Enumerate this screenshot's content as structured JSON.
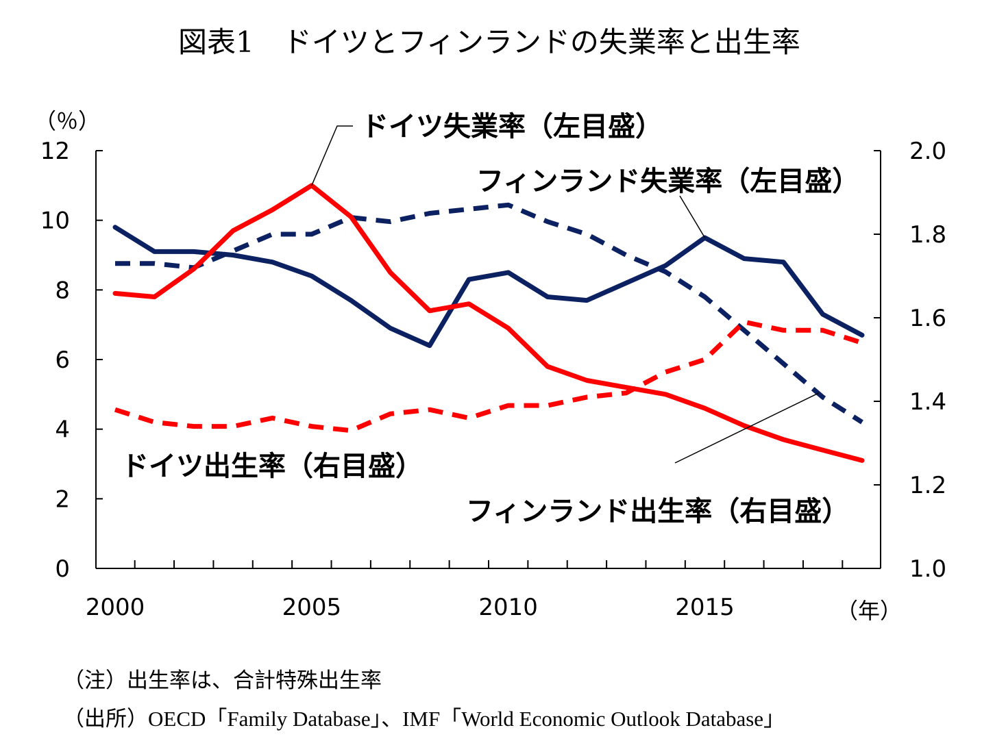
{
  "chart_data": {
    "type": "line",
    "title": "図表1　ドイツとフィンランドの失業率と出生率",
    "left_axis": {
      "unit_label": "（％）",
      "ylim": [
        0,
        12
      ],
      "ticks": [
        0,
        2,
        4,
        6,
        8,
        10,
        12
      ]
    },
    "right_axis": {
      "ylim": [
        1.0,
        2.0
      ],
      "ticks": [
        "1.0",
        "1.2",
        "1.4",
        "1.6",
        "1.8",
        "2.0"
      ]
    },
    "x_axis": {
      "unit_label": "（年）",
      "xlim": [
        2000,
        2019
      ],
      "tick_labels": [
        2000,
        2005,
        2010,
        2015
      ]
    },
    "x": [
      2000,
      2001,
      2002,
      2003,
      2004,
      2005,
      2006,
      2007,
      2008,
      2009,
      2010,
      2011,
      2012,
      2013,
      2014,
      2015,
      2016,
      2017,
      2018,
      2019
    ],
    "series": [
      {
        "name": "ドイツ失業率（左目盛）",
        "axis": "left",
        "color": "#ff0000",
        "dash": false,
        "values": [
          7.9,
          7.8,
          8.6,
          9.7,
          10.3,
          11.0,
          10.1,
          8.5,
          7.4,
          7.6,
          6.9,
          5.8,
          5.4,
          5.2,
          5.0,
          4.6,
          4.1,
          3.7,
          3.4,
          3.1
        ]
      },
      {
        "name": "フィンランド失業率（左目盛）",
        "axis": "left",
        "color": "#0b2161",
        "dash": false,
        "values": [
          9.8,
          9.1,
          9.1,
          9.0,
          8.8,
          8.4,
          7.7,
          6.9,
          6.4,
          8.3,
          8.5,
          7.8,
          7.7,
          8.2,
          8.7,
          9.5,
          8.9,
          8.8,
          7.3,
          6.7
        ]
      },
      {
        "name": "ドイツ出生率（右目盛）",
        "axis": "right",
        "color": "#ff0000",
        "dash": true,
        "values": [
          1.38,
          1.35,
          1.34,
          1.34,
          1.36,
          1.34,
          1.33,
          1.37,
          1.38,
          1.36,
          1.39,
          1.39,
          1.41,
          1.42,
          1.47,
          1.5,
          1.59,
          1.57,
          1.57,
          1.54
        ]
      },
      {
        "name": "フィンランド出生率（右目盛）",
        "axis": "right",
        "color": "#0b2161",
        "dash": true,
        "values": [
          1.73,
          1.73,
          1.72,
          1.76,
          1.8,
          1.8,
          1.84,
          1.83,
          1.85,
          1.86,
          1.87,
          1.83,
          1.8,
          1.75,
          1.71,
          1.65,
          1.57,
          1.49,
          1.41,
          1.35
        ]
      }
    ]
  },
  "notes": {
    "note1": "（注）出生率は、合計特殊出生率",
    "note2": "（出所）OECD「Family Database」、IMF「World Economic Outlook Database」"
  }
}
